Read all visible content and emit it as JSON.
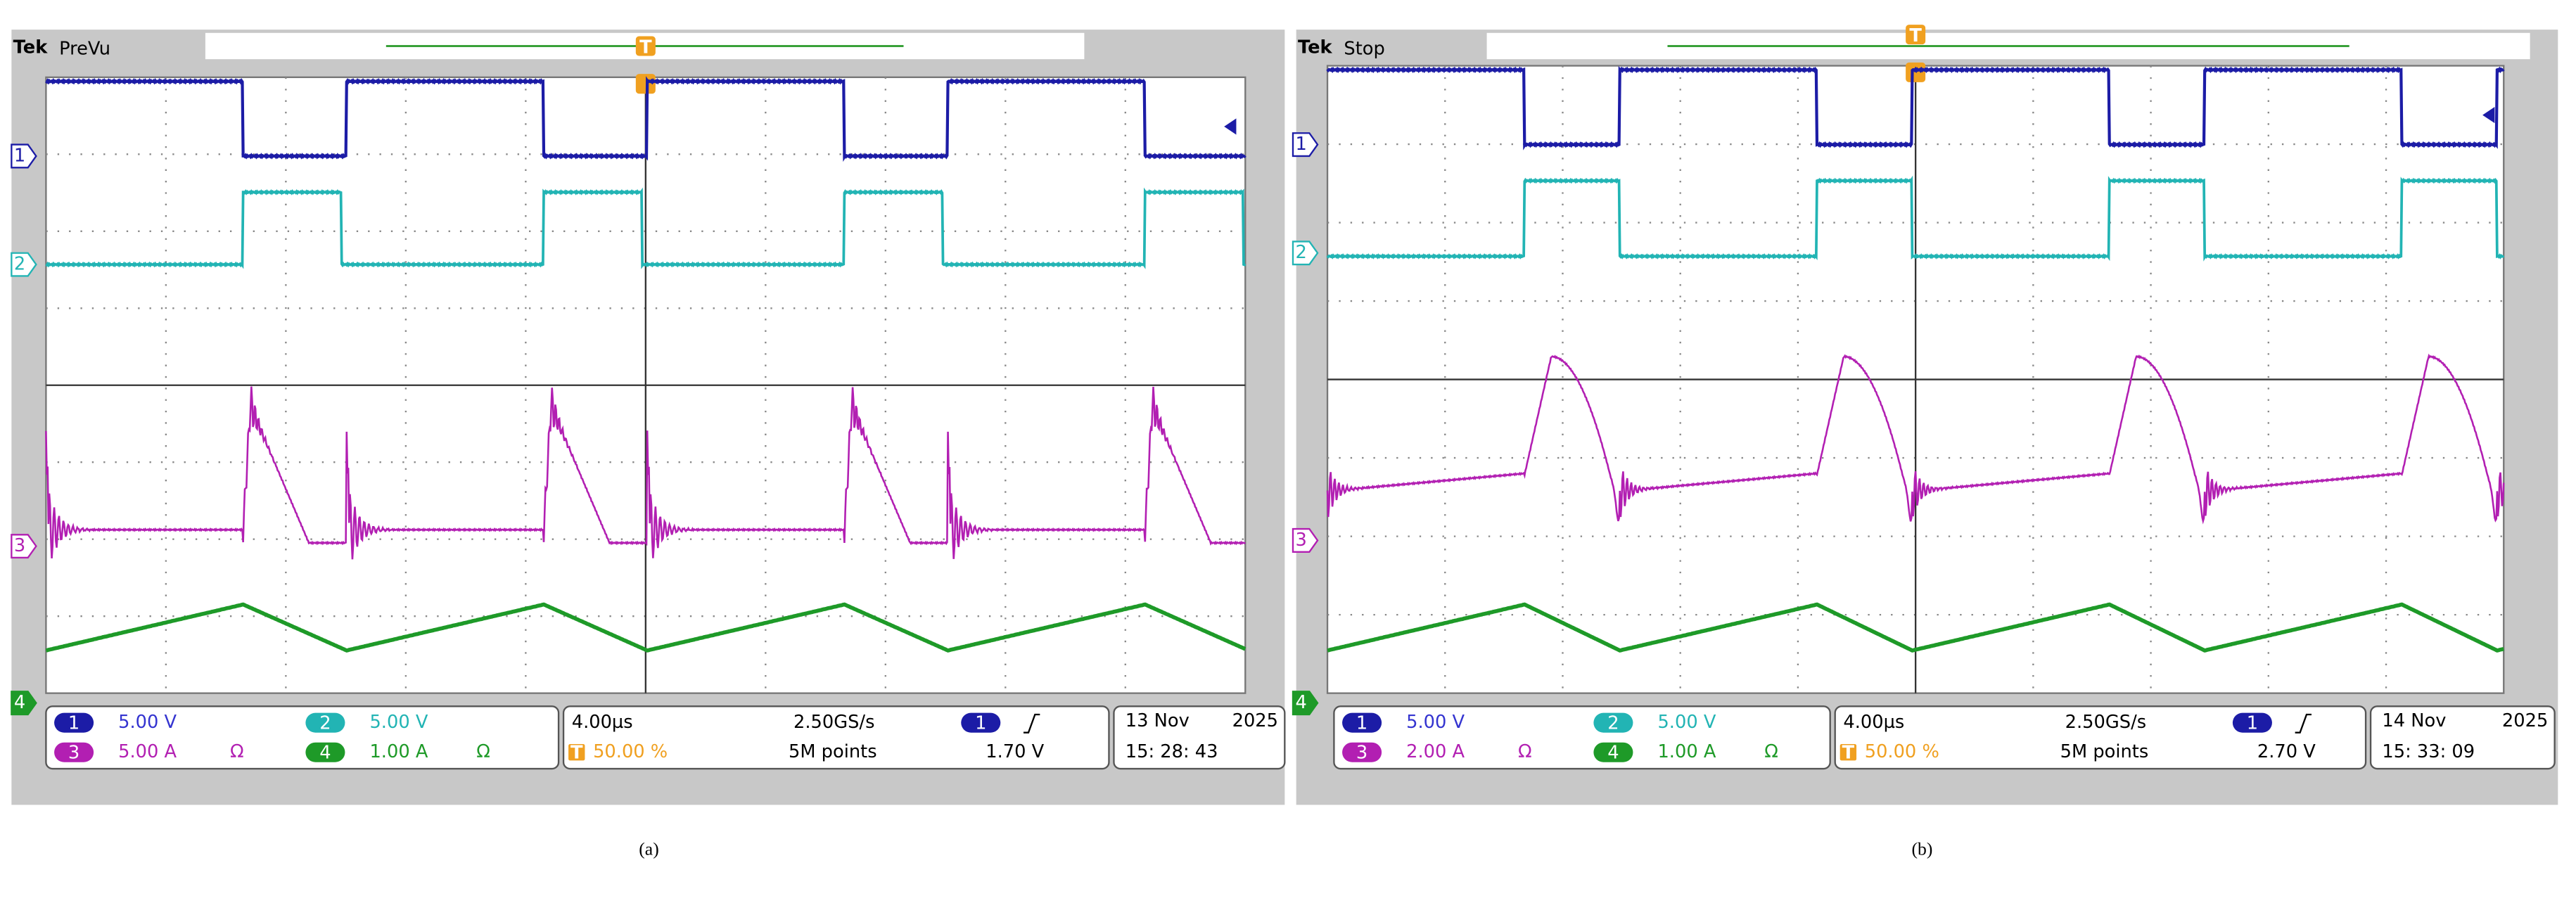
{
  "panels": [
    {
      "brand": "Tek",
      "status": "PreVu",
      "trigger_mark": "T",
      "channels": [
        {
          "num": "1",
          "scale": "5.00 V"
        },
        {
          "num": "2",
          "scale": "5.00 V"
        },
        {
          "num": "3",
          "scale": "5.00 A",
          "symbol": "Ω"
        },
        {
          "num": "4",
          "scale": "1.00 A",
          "symbol": "Ω"
        }
      ],
      "timebase": "4.00µs",
      "sample_rate": "2.50GS/s",
      "trigger_position": "50.00 %",
      "record_length": "5M points",
      "trigger_source": "1",
      "trigger_level": "1.70 V",
      "date": "13 Nov",
      "year": "2025",
      "time": "15: 28: 43",
      "caption": "(a)"
    },
    {
      "brand": "Tek",
      "status": "Stop",
      "trigger_mark": "T",
      "channels": [
        {
          "num": "1",
          "scale": "5.00 V"
        },
        {
          "num": "2",
          "scale": "5.00 V"
        },
        {
          "num": "3",
          "scale": "2.00 A",
          "symbol": "Ω"
        },
        {
          "num": "4",
          "scale": "1.00 A",
          "symbol": "Ω"
        }
      ],
      "timebase": "4.00µs",
      "sample_rate": "2.50GS/s",
      "trigger_position": "50.00 %",
      "record_length": "5M points",
      "trigger_source": "1",
      "trigger_level": "2.70 V",
      "date": "14 Nov",
      "year": "2025",
      "time": "15: 33: 09",
      "caption": "(b)"
    }
  ]
}
